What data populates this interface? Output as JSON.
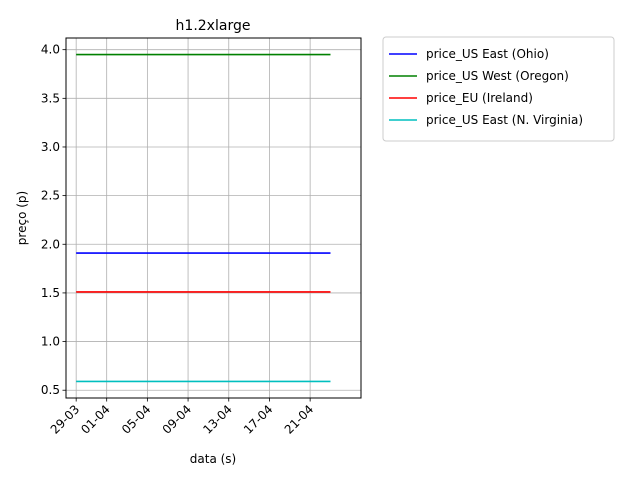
{
  "chart_data": {
    "type": "line",
    "title": "h1.2xlarge",
    "xlabel": "data (s)",
    "ylabel": "preço (p)",
    "x_tick_labels": [
      "29-03",
      "01-04",
      "05-04",
      "09-04",
      "13-04",
      "17-04",
      "21-04"
    ],
    "x_tick_dates": [
      "2018-03-29",
      "2018-04-01",
      "2018-04-05",
      "2018-04-09",
      "2018-04-13",
      "2018-04-17",
      "2018-04-21"
    ],
    "x_range": [
      "2018-03-28",
      "2018-04-26"
    ],
    "y_ticks": [
      0.5,
      1.0,
      1.5,
      2.0,
      2.5,
      3.0,
      3.5,
      4.0
    ],
    "y_tick_labels": [
      "0.5",
      "1.0",
      "1.5",
      "2.0",
      "2.5",
      "3.0",
      "3.5",
      "4.0"
    ],
    "ylim": [
      0.42,
      4.12
    ],
    "grid": true,
    "legend_position": "outside-right-top",
    "x": [
      "2018-03-29",
      "2018-04-23"
    ],
    "series": [
      {
        "name": "price_US East (Ohio)",
        "color": "#0000ff",
        "values": [
          1.91,
          1.91
        ]
      },
      {
        "name": "price_US West (Oregon)",
        "color": "#008000",
        "values": [
          3.95,
          3.95
        ]
      },
      {
        "name": "price_EU (Ireland)",
        "color": "#ff0000",
        "values": [
          1.51,
          1.51
        ]
      },
      {
        "name": "price_US East (N. Virginia)",
        "color": "#00bfbf",
        "values": [
          0.59,
          0.59
        ]
      }
    ]
  }
}
